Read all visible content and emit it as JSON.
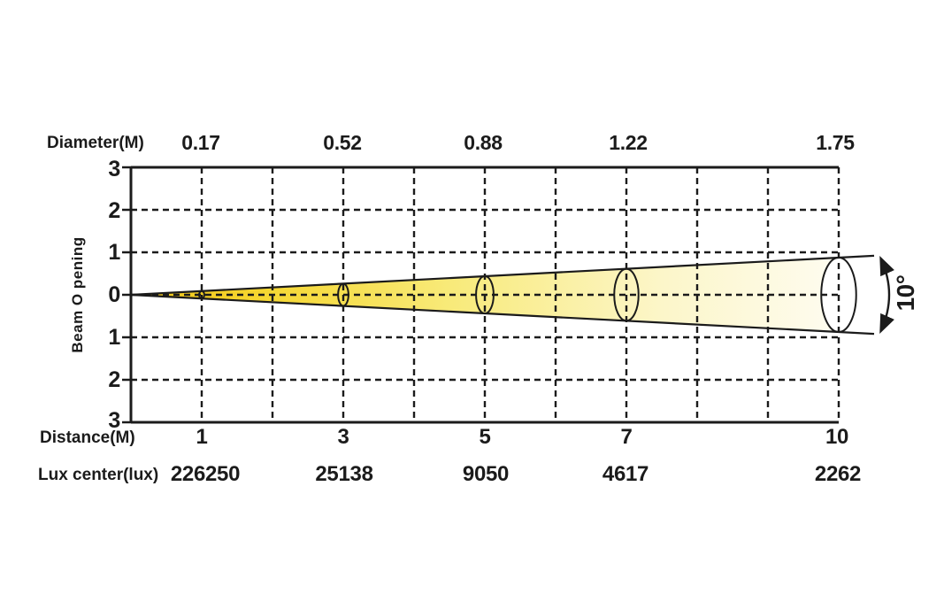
{
  "rows": {
    "diameter": {
      "label": "Diameter(M)",
      "values": [
        "0.17",
        "0.52",
        "0.88",
        "1.22",
        "1.75"
      ]
    },
    "distance": {
      "label": "Distance(M)",
      "values": [
        "1",
        "3",
        "5",
        "7",
        "10"
      ]
    },
    "lux": {
      "label": "Lux center(lux)",
      "values": [
        "226250",
        "25138",
        "9050",
        "4617",
        "2262"
      ]
    }
  },
  "y_axis": {
    "label": "Beam O pening",
    "tick_labels": [
      "3",
      "2",
      "1",
      "0",
      "1",
      "2",
      "3"
    ]
  },
  "beam": {
    "angle_label": "10°"
  },
  "colors": {
    "ink": "#1b1b1b",
    "beam_start": "#F0C417",
    "beam_mid1": "#F5D62F",
    "beam_mid2": "#F8EA79",
    "beam_mid3": "#FCF6C9",
    "beam_end": "#FEFCF0"
  },
  "chart_data": {
    "type": "area",
    "title": "Beam photometric cone diagram",
    "beam_angle_deg": 10,
    "x_axis": {
      "label": "Distance(M)",
      "range": [
        0,
        10
      ],
      "gridline_step": 1,
      "labeled_ticks": [
        1,
        3,
        5,
        7,
        10
      ]
    },
    "y_axis": {
      "label": "Beam O pening",
      "range": [
        -3,
        3
      ],
      "gridline_step": 1,
      "tick_labels_abs": [
        3,
        2,
        1,
        0,
        1,
        2,
        3
      ]
    },
    "grid": "dashed",
    "legend": "none",
    "series": [
      {
        "name": "Diameter(M)",
        "x": [
          1,
          3,
          5,
          7,
          10
        ],
        "values": [
          0.17,
          0.52,
          0.88,
          1.22,
          1.75
        ]
      },
      {
        "name": "Lux center(lux)",
        "x": [
          1,
          3,
          5,
          7,
          10
        ],
        "values": [
          226250,
          25138,
          9050,
          4617,
          2262
        ]
      }
    ],
    "annotations": [
      {
        "text": "10°",
        "type": "angle-arc",
        "position": "right-of-cone"
      }
    ]
  }
}
